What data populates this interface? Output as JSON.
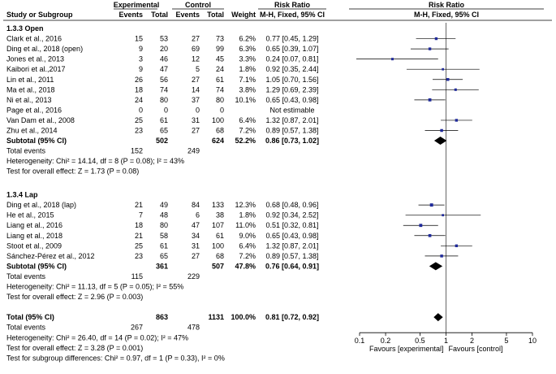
{
  "chart_data": {
    "type": "forest",
    "title": "",
    "header": {
      "group_experimental": "Experimental",
      "group_control": "Control",
      "group_rr_text": "Risk Ratio",
      "group_rr_plot": "Risk Ratio",
      "study": "Study or Subgroup",
      "events_e": "Events",
      "total_e": "Total",
      "events_c": "Events",
      "total_c": "Total",
      "weight": "Weight",
      "method_text": "M-H, Fixed, 95% CI",
      "method_plot": "M-H, Fixed, 95% CI"
    },
    "axis": {
      "scale": "log",
      "range": [
        0.1,
        10
      ],
      "ticks": [
        0.1,
        0.2,
        0.5,
        1,
        2,
        5,
        10
      ],
      "tick_labels": [
        "0.1",
        "0.2",
        "0.5",
        "1",
        "2",
        "5",
        "10"
      ],
      "null_value": 1,
      "favours_left": "Favours [experimental]",
      "favours_right": "Favours [control]"
    },
    "subgroups": [
      {
        "label": "1.3.3 Open",
        "studies": [
          {
            "name": "Clark et al., 2016",
            "ee": "15",
            "te": "53",
            "ec": "27",
            "tc": "73",
            "weight": "6.2%",
            "ci_text": "0.77 [0.45, 1.29]",
            "rr": 0.77,
            "lo": 0.45,
            "hi": 1.29
          },
          {
            "name": "Ding et al., 2018 (open)",
            "ee": "9",
            "te": "20",
            "ec": "69",
            "tc": "99",
            "weight": "6.3%",
            "ci_text": "0.65 [0.39, 1.07]",
            "rr": 0.65,
            "lo": 0.39,
            "hi": 1.07
          },
          {
            "name": "Jones et al., 2013",
            "ee": "3",
            "te": "46",
            "ec": "12",
            "tc": "45",
            "weight": "3.3%",
            "ci_text": "0.24 [0.07, 0.81]",
            "rr": 0.24,
            "lo": 0.07,
            "hi": 0.81
          },
          {
            "name": "Kaibori et al.,2017",
            "ee": "9",
            "te": "47",
            "ec": "5",
            "tc": "24",
            "weight": "1.8%",
            "ci_text": "0.92 [0.35, 2.44]",
            "rr": 0.92,
            "lo": 0.35,
            "hi": 2.44
          },
          {
            "name": "Lin et al., 2011",
            "ee": "26",
            "te": "56",
            "ec": "27",
            "tc": "61",
            "weight": "7.1%",
            "ci_text": "1.05 [0.70, 1.56]",
            "rr": 1.05,
            "lo": 0.7,
            "hi": 1.56
          },
          {
            "name": "Ma et al., 2018",
            "ee": "18",
            "te": "74",
            "ec": "14",
            "tc": "74",
            "weight": "3.8%",
            "ci_text": "1.29 [0.69, 2.39]",
            "rr": 1.29,
            "lo": 0.69,
            "hi": 2.39
          },
          {
            "name": "Ni et al., 2013",
            "ee": "24",
            "te": "80",
            "ec": "37",
            "tc": "80",
            "weight": "10.1%",
            "ci_text": "0.65 [0.43, 0.98]",
            "rr": 0.65,
            "lo": 0.43,
            "hi": 0.98
          },
          {
            "name": "Page et al., 2016",
            "ee": "0",
            "te": "0",
            "ec": "0",
            "tc": "0",
            "weight": "",
            "ci_text": "Not estimable",
            "rr": null,
            "lo": null,
            "hi": null
          },
          {
            "name": "Van Dam et al., 2008",
            "ee": "25",
            "te": "61",
            "ec": "31",
            "tc": "100",
            "weight": "6.4%",
            "ci_text": "1.32 [0.87, 2.01]",
            "rr": 1.32,
            "lo": 0.87,
            "hi": 2.01
          },
          {
            "name": "Zhu et al., 2014",
            "ee": "23",
            "te": "65",
            "ec": "27",
            "tc": "68",
            "weight": "7.2%",
            "ci_text": "0.89 [0.57, 1.38]",
            "rr": 0.89,
            "lo": 0.57,
            "hi": 1.38
          }
        ],
        "subtotal": {
          "label": "Subtotal (95% CI)",
          "te": "502",
          "tc": "624",
          "weight": "52.2%",
          "ci_text": "0.86 [0.73, 1.02]",
          "rr": 0.86,
          "lo": 0.73,
          "hi": 1.02
        },
        "events": {
          "label": "Total events",
          "e": "152",
          "c": "249"
        },
        "heterogeneity": "Heterogeneity: Chi² = 14.14, df = 8 (P = 0.08); I² = 43%",
        "overall_test": "Test for overall effect: Z = 1.73 (P = 0.08)"
      },
      {
        "label": "1.3.4 Lap",
        "studies": [
          {
            "name": "Ding et al., 2018 (lap)",
            "ee": "21",
            "te": "49",
            "ec": "84",
            "tc": "133",
            "weight": "12.3%",
            "ci_text": "0.68 [0.48, 0.96]",
            "rr": 0.68,
            "lo": 0.48,
            "hi": 0.96
          },
          {
            "name": "He et al., 2015",
            "ee": "7",
            "te": "48",
            "ec": "6",
            "tc": "38",
            "weight": "1.8%",
            "ci_text": "0.92 [0.34, 2.52]",
            "rr": 0.92,
            "lo": 0.34,
            "hi": 2.52
          },
          {
            "name": "Liang et al., 2016",
            "ee": "18",
            "te": "80",
            "ec": "47",
            "tc": "107",
            "weight": "11.0%",
            "ci_text": "0.51 [0.32, 0.81]",
            "rr": 0.51,
            "lo": 0.32,
            "hi": 0.81
          },
          {
            "name": "Liang et al., 2018",
            "ee": "21",
            "te": "58",
            "ec": "34",
            "tc": "61",
            "weight": "9.0%",
            "ci_text": "0.65 [0.43, 0.98]",
            "rr": 0.65,
            "lo": 0.43,
            "hi": 0.98
          },
          {
            "name": "Stoot et al., 2009",
            "ee": "25",
            "te": "61",
            "ec": "31",
            "tc": "100",
            "weight": "6.4%",
            "ci_text": "1.32 [0.87, 2.01]",
            "rr": 1.32,
            "lo": 0.87,
            "hi": 2.01
          },
          {
            "name": "Sánchez-Pérez et al., 2012",
            "ee": "23",
            "te": "65",
            "ec": "27",
            "tc": "68",
            "weight": "7.2%",
            "ci_text": "0.89 [0.57, 1.38]",
            "rr": 0.89,
            "lo": 0.57,
            "hi": 1.38
          }
        ],
        "subtotal": {
          "label": "Subtotal (95% CI)",
          "te": "361",
          "tc": "507",
          "weight": "47.8%",
          "ci_text": "0.76 [0.64, 0.91]",
          "rr": 0.76,
          "lo": 0.64,
          "hi": 0.91
        },
        "events": {
          "label": "Total events",
          "e": "115",
          "c": "229"
        },
        "heterogeneity": "Heterogeneity: Chi² = 11.13, df = 5 (P = 0.05); I² = 55%",
        "overall_test": "Test for overall effect: Z = 2.96 (P = 0.003)"
      }
    ],
    "total": {
      "label": "Total (95% CI)",
      "te": "863",
      "tc": "1131",
      "weight": "100.0%",
      "ci_text": "0.81 [0.72, 0.92]",
      "rr": 0.81,
      "lo": 0.72,
      "hi": 0.92
    },
    "total_events": {
      "label": "Total events",
      "e": "267",
      "c": "478"
    },
    "footer": [
      "Heterogeneity: Chi² = 26.40, df = 14 (P = 0.02); I² = 47%",
      "Test for overall effect: Z = 3.28 (P = 0.001)",
      "Test for subgroup differences: Chi² = 0.97, df = 1 (P = 0.33), I² = 0%"
    ],
    "colors": {
      "marker": "#1f2a9a",
      "text": "#000000",
      "line": "#000000",
      "diamond": "#000000"
    }
  }
}
